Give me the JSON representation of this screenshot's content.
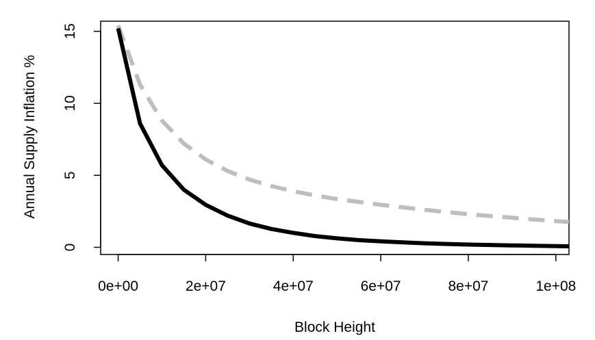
{
  "chart_data": {
    "type": "line",
    "title": "",
    "xlabel": "Block Height",
    "ylabel": "Annual Supply Inflation %",
    "xlim": [
      -4000000,
      103000000
    ],
    "ylim": [
      -0.5,
      15.7
    ],
    "grid": false,
    "legend": "none",
    "x_ticks": [
      0,
      20000000,
      40000000,
      60000000,
      80000000,
      100000000
    ],
    "x_tick_labels": [
      "0e+00",
      "2e+07",
      "4e+07",
      "6e+07",
      "8e+07",
      "1e+08"
    ],
    "y_ticks": [
      0,
      5,
      10,
      15
    ],
    "y_tick_labels": [
      "0",
      "5",
      "10",
      "15"
    ],
    "series": [
      {
        "color": "#000000",
        "style": "solid",
        "x": [
          0,
          5000000,
          10000000,
          15000000,
          20000000,
          25000000,
          30000000,
          35000000,
          40000000,
          45000000,
          50000000,
          55000000,
          60000000,
          65000000,
          70000000,
          75000000,
          80000000,
          85000000,
          90000000,
          95000000,
          100000000,
          103000000
        ],
        "y": [
          15.2,
          8.6,
          5.7,
          4.0,
          2.95,
          2.2,
          1.65,
          1.27,
          1.0,
          0.78,
          0.62,
          0.5,
          0.41,
          0.34,
          0.28,
          0.23,
          0.19,
          0.16,
          0.13,
          0.11,
          0.08,
          0.07
        ]
      },
      {
        "color": "#bebebe",
        "style": "dashed",
        "x": [
          0,
          5000000,
          10000000,
          15000000,
          20000000,
          25000000,
          30000000,
          35000000,
          40000000,
          45000000,
          50000000,
          55000000,
          60000000,
          65000000,
          70000000,
          75000000,
          80000000,
          85000000,
          90000000,
          95000000,
          100000000,
          103000000
        ],
        "y": [
          15.4,
          11.3,
          8.8,
          7.2,
          6.1,
          5.3,
          4.7,
          4.25,
          3.9,
          3.6,
          3.35,
          3.15,
          2.95,
          2.78,
          2.6,
          2.45,
          2.3,
          2.17,
          2.05,
          1.93,
          1.82,
          1.76
        ]
      }
    ]
  }
}
